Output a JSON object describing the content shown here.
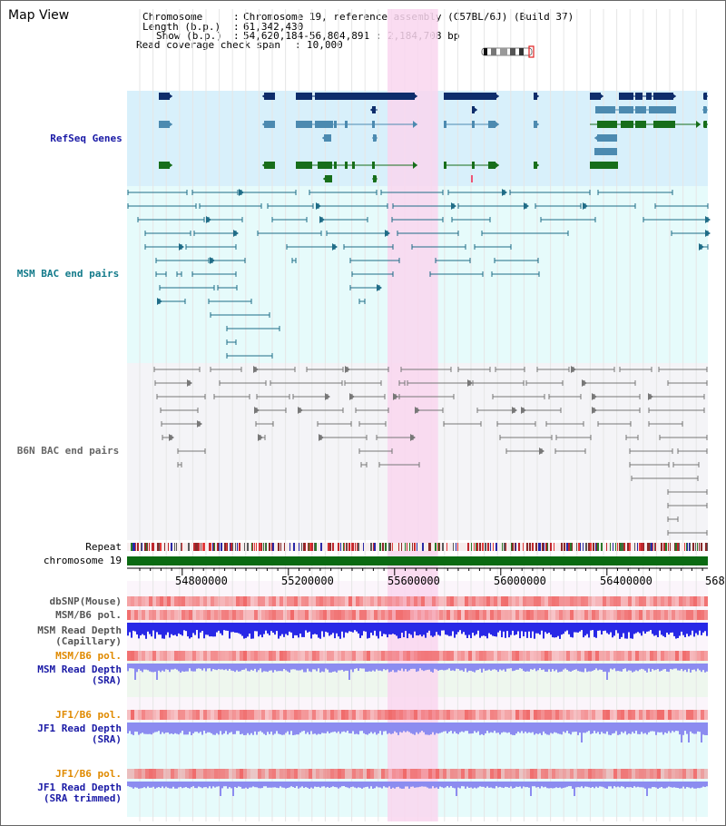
{
  "title": "Map View",
  "info": {
    "chromosome_label": "Chromosome",
    "chromosome_value": "Chromosome 19, reference assembly (C57BL/6J) (Build 37)",
    "length_label": "Length (b.p.)",
    "length_value": "61,342,430",
    "show_label": "Show (b.p.)",
    "show_value": "54,620,184-56,804,891 : 2,184,708 bp",
    "coverage_label": "Read coverage check span",
    "coverage_value": "10,000"
  },
  "view": {
    "start": 54620184,
    "end": 56804891,
    "highlight_start": 55600000,
    "highlight_end": 55790000
  },
  "tracks": {
    "refseq_label": "RefSeq Genes",
    "msm_bac_label": "MSM BAC end pairs",
    "b6n_bac_label": "B6N BAC end pairs",
    "repeat_label": "Repeat",
    "chromosome_label": "chromosome 19"
  },
  "axis_ticks": [
    "54800000",
    "55200000",
    "55600000",
    "56000000",
    "56400000",
    "568"
  ],
  "lower_tracks": [
    {
      "line1": "dbSNP(Mouse)",
      "line2": "",
      "color": "#555555"
    },
    {
      "line1": "MSM/B6 pol.",
      "line2": "",
      "color": "#555555"
    },
    {
      "line1": "MSM Read Depth",
      "line2": "(Capillary)",
      "color": "#555555"
    },
    {
      "line1": "MSM/B6 pol.",
      "line2": "",
      "color": "#e08a00"
    },
    {
      "line1": "MSM Read Depth",
      "line2": "(SRA)",
      "color": "#1a1aa6"
    },
    {
      "line1": "JF1/B6 pol.",
      "line2": "",
      "color": "#e08a00"
    },
    {
      "line1": "JF1 Read Depth",
      "line2": "(SRA)",
      "color": "#1a1aa6"
    },
    {
      "line1": "JF1/B6 pol.",
      "line2": "",
      "color": "#e08a00"
    },
    {
      "line1": "JF1 Read Depth",
      "line2": "(SRA trimmed)",
      "color": "#1a1aa6"
    }
  ],
  "colors": {
    "refseq_bg": "#d8f0fb",
    "msm_bac_bg": "#e6fbfb",
    "b6n_bac_bg": "#f4f4f7",
    "highlight": "#f9d6ef",
    "gene_dark": "#0e2d6b",
    "gene_mid": "#4c8ab0",
    "gene_green": "#176e1a",
    "bac_line": "#1f6c87",
    "b6n_line": "#777777",
    "chrom_bar": "#0a6a12",
    "pol_red": "#f06a6a",
    "depth_blue": "#2828e6",
    "depth_light": "#8c8cf0"
  }
}
